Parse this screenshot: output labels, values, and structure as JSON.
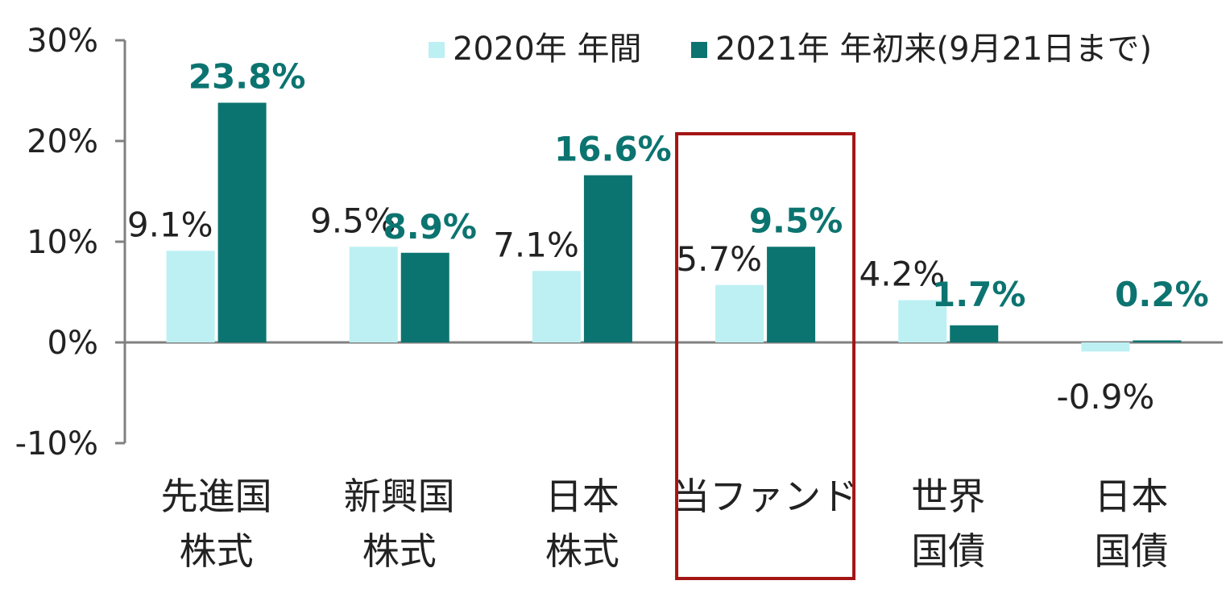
{
  "chart_data": {
    "type": "bar",
    "categories": [
      [
        "先進国",
        "株式"
      ],
      [
        "新興国",
        "株式"
      ],
      [
        "日本",
        "株式"
      ],
      [
        "当ファンド"
      ],
      [
        "世界",
        "国債"
      ],
      [
        "日本",
        "国債"
      ]
    ],
    "series": [
      {
        "name": "2020年 年間",
        "values": [
          9.1,
          9.5,
          7.1,
          5.7,
          4.2,
          -0.9
        ],
        "labels": [
          "9.1%",
          "9.5%",
          "7.1%",
          "5.7%",
          "4.2%",
          "-0.9%"
        ],
        "color": "#bdf0f3"
      },
      {
        "name": "2021年 年初来(9月21日まで)",
        "values": [
          23.8,
          8.9,
          16.6,
          9.5,
          1.7,
          0.2
        ],
        "labels": [
          "23.8%",
          "8.9%",
          "16.6%",
          "9.5%",
          "1.7%",
          "0.2%"
        ],
        "color": "#0b7470"
      }
    ],
    "y_ticks": [
      30,
      20,
      10,
      0,
      -10
    ],
    "y_tick_labels": [
      "30%",
      "20%",
      "10%",
      "0%",
      "-10%"
    ],
    "ylim": [
      -10,
      30
    ],
    "grid": false,
    "legend_position": "top-right",
    "highlight": {
      "category_index": 3,
      "color": "#a31515"
    },
    "axis_color": "#808080",
    "title": "",
    "xlabel": "",
    "ylabel": ""
  }
}
